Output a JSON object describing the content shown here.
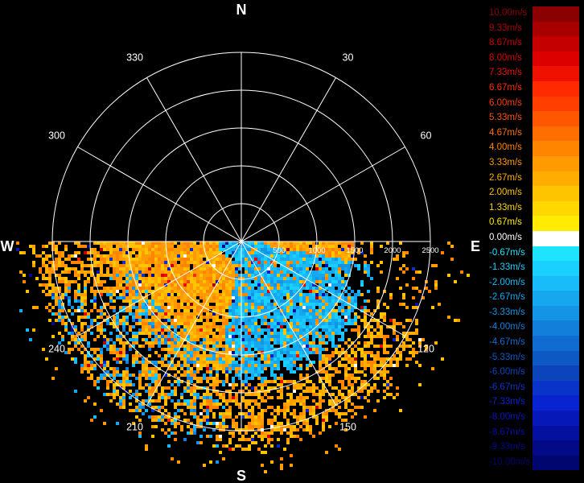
{
  "chart_data": {
    "type": "heatmap",
    "subtype": "polar-ppi-radial-velocity-scan",
    "cardinal_labels": {
      "north": "N",
      "east": "E",
      "south": "S",
      "west": "W"
    },
    "azimuth_labels": [
      "30",
      "60",
      "120",
      "150",
      "210",
      "240",
      "300",
      "330"
    ],
    "range_labels": [
      "500",
      "1000",
      "1500",
      "2000",
      "2500"
    ],
    "range_max": 2500,
    "sector_covered_deg": [
      90,
      270
    ],
    "colorbar": {
      "labels": [
        "10.00m/s",
        "9.33m/s",
        "8.67m/s",
        "8.00m/s",
        "7.33m/s",
        "6.67m/s",
        "6.00m/s",
        "5.33m/s",
        "4.67m/s",
        "4.00m/s",
        "3.33m/s",
        "2.67m/s",
        "2.00m/s",
        "1.33m/s",
        "0.67m/s",
        "0.00m/s",
        "-0.67m/s",
        "-1.33m/s",
        "-2.00m/s",
        "-2.67m/s",
        "-3.33m/s",
        "-4.00m/s",
        "-4.67m/s",
        "-5.33m/s",
        "-6.00m/s",
        "-6.67m/s",
        "-7.33m/s",
        "-8.00m/s",
        "-8.67m/s",
        "-9.33m/s",
        "-10.00m/s"
      ],
      "colors": [
        "#8b0000",
        "#a80000",
        "#c40000",
        "#dd0000",
        "#f01000",
        "#ff2a00",
        "#ff3e00",
        "#ff5600",
        "#ff6e00",
        "#ff8400",
        "#ff9a00",
        "#ffae00",
        "#ffc400",
        "#ffd800",
        "#ffec00",
        "#ffffff",
        "#1ee4ff",
        "#1ad0ff",
        "#18bcf8",
        "#16a8ee",
        "#1494e4",
        "#1280da",
        "#106cd0",
        "#0e58c6",
        "#0c44bc",
        "#0a34c8",
        "#0824d0",
        "#0618b8",
        "#0410a0",
        "#020a88",
        "#000670"
      ]
    },
    "data_summary": "Only the southern half (azimuth 90-270) contains returns. Warm positive velocities (about 2-4 m/s) dominate the SW and S sectors; cool negative velocities (about -1 to -3 m/s) dominate the SE sector near the radar and a lobe extending from E-SE toward S."
  }
}
